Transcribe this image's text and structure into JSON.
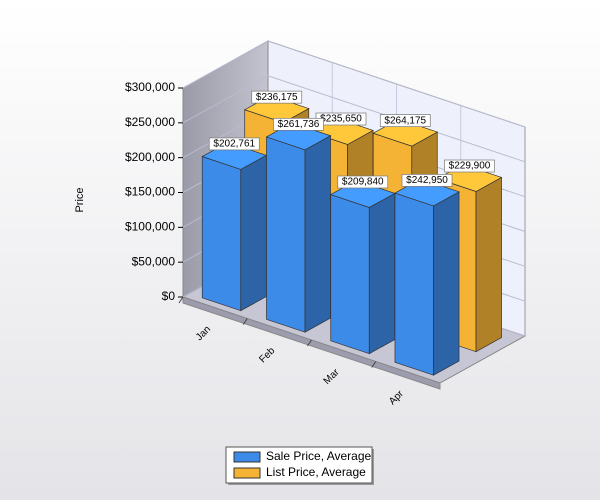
{
  "chart_data": {
    "type": "bar3d",
    "y_label": "Price",
    "categories": [
      "Jan",
      "Feb",
      "Mar",
      "Apr"
    ],
    "series": [
      {
        "name": "Sale Price, Average",
        "color": "#3d8be8",
        "values": [
          202761,
          261736,
          209840,
          242950
        ],
        "value_labels": [
          "$202,761",
          "$261,736",
          "$209,840",
          "$242,950"
        ]
      },
      {
        "name": "List Price, Average",
        "color": "#f5b335",
        "values": [
          236175,
          235650,
          264175,
          229900
        ],
        "value_labels": [
          "$236,175",
          "$235,650",
          "$264,175",
          "$229,900"
        ]
      }
    ],
    "ylim": [
      0,
      300000
    ],
    "yticks": [
      {
        "value": 0,
        "label": "$0"
      },
      {
        "value": 50000,
        "label": "$50,000"
      },
      {
        "value": 100000,
        "label": "$100,000"
      },
      {
        "value": 150000,
        "label": "$150,000"
      },
      {
        "value": 200000,
        "label": "$200,000"
      },
      {
        "value": 250000,
        "label": "$250,000"
      },
      {
        "value": 300000,
        "label": "$300,000"
      }
    ],
    "grid": true
  }
}
